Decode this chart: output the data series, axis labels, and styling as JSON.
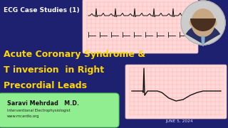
{
  "bg_color": "#1e2070",
  "title_text": "ECG Case Studies (1)",
  "title_color": "#ffffff",
  "title_fontsize": 6.5,
  "main_line1": "Acute Coronary Syndrome &",
  "main_line2": "T inversion  in Right",
  "main_line3": "Precordial Leads",
  "main_color": "#ffd700",
  "main_fontsize": 9.0,
  "badge_text": "Saravi Mehrdad   M.D.",
  "badge_sub1": "Interventional Electrophysiologist",
  "badge_sub2": "www.mcardio.org",
  "badge_bg": "#90ee90",
  "date_text": "JUNE 5, 2024",
  "date_color": "#ddddff",
  "ecg_bg": "#ffd8d8",
  "ecg_grid_color": "#ffaaaa",
  "ecg_line_color": "#111111",
  "face_skin": "#c8a882",
  "face_hair": "#4a3020",
  "face_suit": "#2a3060",
  "face_tie": "#88aacc",
  "face_circle_border": "#cccccc"
}
